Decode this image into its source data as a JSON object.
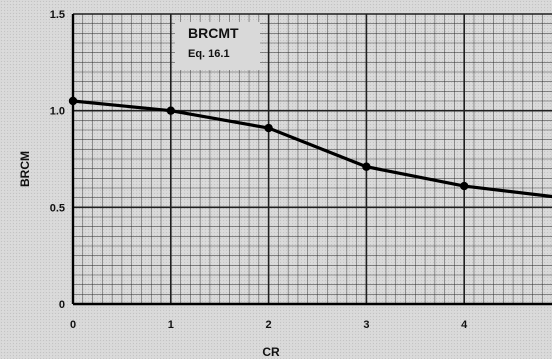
{
  "chart_data": {
    "type": "line",
    "title": "",
    "xlabel": "CR",
    "ylabel": "BRCM",
    "xlim": [
      0,
      5
    ],
    "ylim": [
      0,
      1.5
    ],
    "x_ticks": [
      "0",
      "1",
      "2",
      "3",
      "4"
    ],
    "y_ticks": [
      "0",
      "0.5",
      "1.0",
      "1.5"
    ],
    "series": [
      {
        "x": [
          0,
          1,
          2,
          3,
          4,
          5
        ],
        "values": [
          1.05,
          1.0,
          0.91,
          0.71,
          0.61,
          0.55
        ]
      }
    ],
    "annotations": [
      {
        "text": "BRCMT"
      },
      {
        "text": "Eq. 16.1"
      }
    ],
    "grid": true,
    "legend": "none",
    "colors": {
      "background": "#d9d9d9",
      "grid": "#1f1f1f",
      "line": "#000000"
    }
  }
}
